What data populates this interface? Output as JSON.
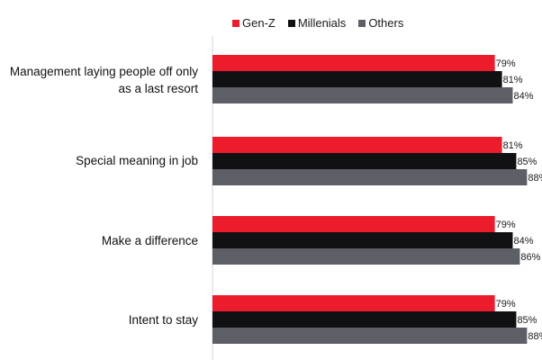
{
  "chart_data": {
    "type": "bar",
    "orientation": "horizontal",
    "categories": [
      "Management laying people off only as a last resort",
      "Special meaning in job",
      "Make a difference",
      "Intent to stay"
    ],
    "series": [
      {
        "name": "Gen-Z",
        "color": "#ec1c2d",
        "values": [
          79,
          81,
          79,
          79
        ],
        "labels": [
          "79%",
          "81%",
          "79%",
          "79%"
        ]
      },
      {
        "name": "Millenials",
        "color": "#111114",
        "values": [
          81,
          85,
          84,
          85
        ],
        "labels": [
          "81%",
          "85%",
          "84%",
          "85%"
        ]
      },
      {
        "name": "Others",
        "color": "#5c5f66",
        "values": [
          84,
          88,
          86,
          88
        ],
        "labels": [
          "84%",
          "88%",
          "86%",
          "88%"
        ]
      }
    ],
    "legend_position": "top",
    "grid": false
  }
}
